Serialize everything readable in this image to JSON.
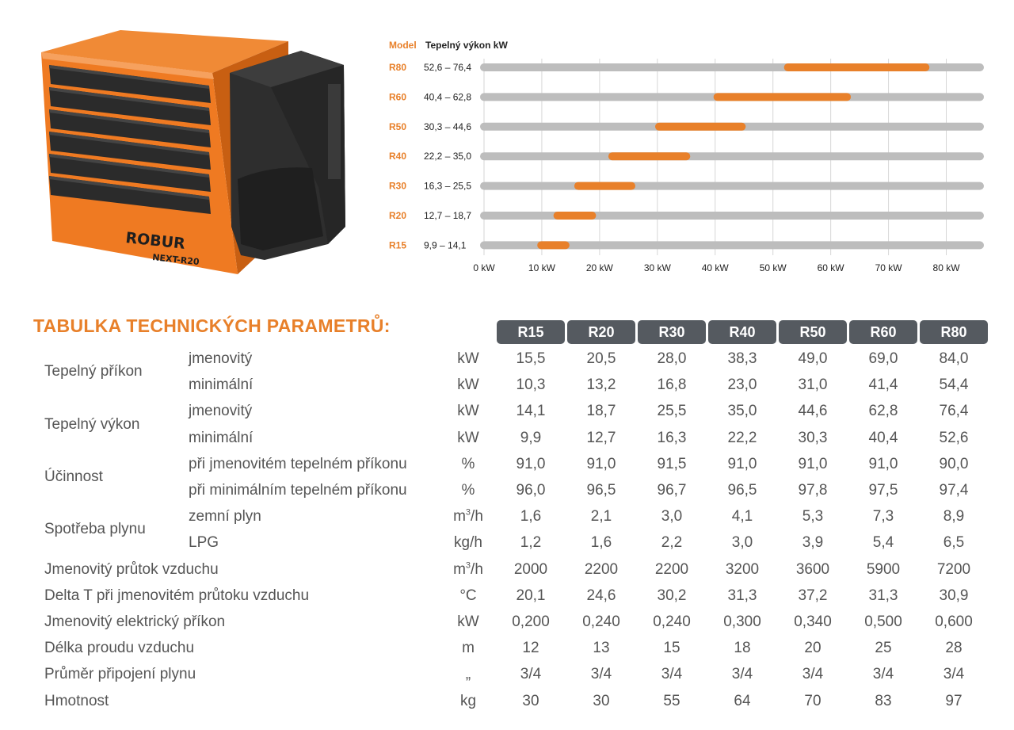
{
  "product": {
    "brand": "ROBUR",
    "model_label": "NEXT-R20",
    "colors": {
      "body": "#ef7a22",
      "dark": "#2a2a2a"
    }
  },
  "chart_data": {
    "type": "range-bar",
    "header_model": "Model",
    "header_title": "Tepelný výkon kW",
    "xlim": [
      0,
      85
    ],
    "x_ticks": [
      0,
      10,
      20,
      30,
      40,
      50,
      60,
      70,
      80
    ],
    "x_tick_labels": [
      "0 kW",
      "10 kW",
      "20 kW",
      "30 kW",
      "40 kW",
      "50 kW",
      "60 kW",
      "70 kW",
      "80 kW"
    ],
    "rows": [
      {
        "model": "R80",
        "range_label": "52,6 – 76,4",
        "min": 52.6,
        "max": 76.4
      },
      {
        "model": "R60",
        "range_label": "40,4 – 62,8",
        "min": 40.4,
        "max": 62.8
      },
      {
        "model": "R50",
        "range_label": "30,3 – 44,6",
        "min": 30.3,
        "max": 44.6
      },
      {
        "model": "R40",
        "range_label": "22,2 – 35,0",
        "min": 22.2,
        "max": 35.0
      },
      {
        "model": "R30",
        "range_label": "16,3 – 25,5",
        "min": 16.3,
        "max": 25.5
      },
      {
        "model": "R20",
        "range_label": "12,7 – 18,7",
        "min": 12.7,
        "max": 18.7
      },
      {
        "model": "R15",
        "range_label": "9,9 – 14,1",
        "min": 9.9,
        "max": 14.1
      }
    ],
    "colors": {
      "track": "#bdbdbd",
      "range": "#e8802a",
      "grid": "#d6d6d6"
    }
  },
  "table": {
    "title": "TABULKA TECHNICKÝCH PARAMETRŮ:",
    "models": [
      "R15",
      "R20",
      "R30",
      "R40",
      "R50",
      "R60",
      "R80"
    ],
    "groups": [
      {
        "label": "Tepelný příkon",
        "rows": [
          {
            "sub": "jmenovitý",
            "unit": "kW",
            "values": [
              "15,5",
              "20,5",
              "28,0",
              "38,3",
              "49,0",
              "69,0",
              "84,0"
            ]
          },
          {
            "sub": "minimální",
            "unit": "kW",
            "values": [
              "10,3",
              "13,2",
              "16,8",
              "23,0",
              "31,0",
              "41,4",
              "54,4"
            ]
          }
        ]
      },
      {
        "label": "Tepelný výkon",
        "rows": [
          {
            "sub": "jmenovitý",
            "unit": "kW",
            "values": [
              "14,1",
              "18,7",
              "25,5",
              "35,0",
              "44,6",
              "62,8",
              "76,4"
            ]
          },
          {
            "sub": "minimální",
            "unit": "kW",
            "values": [
              "9,9",
              "12,7",
              "16,3",
              "22,2",
              "30,3",
              "40,4",
              "52,6"
            ]
          }
        ]
      },
      {
        "label": "Účinnost",
        "rows": [
          {
            "sub": "při jmenovitém tepelném příkonu",
            "unit": "%",
            "values": [
              "91,0",
              "91,0",
              "91,5",
              "91,0",
              "91,0",
              "91,0",
              "90,0"
            ]
          },
          {
            "sub": "při minimálním tepelném příkonu",
            "unit": "%",
            "values": [
              "96,0",
              "96,5",
              "96,7",
              "96,5",
              "97,8",
              "97,5",
              "97,4"
            ]
          }
        ]
      },
      {
        "label": "Spotřeba plynu",
        "rows": [
          {
            "sub": "zemní plyn",
            "unit": "m³/h",
            "values": [
              "1,6",
              "2,1",
              "3,0",
              "4,1",
              "5,3",
              "7,3",
              "8,9"
            ]
          },
          {
            "sub": "LPG",
            "unit": "kg/h",
            "values": [
              "1,2",
              "1,6",
              "2,2",
              "3,0",
              "3,9",
              "5,4",
              "6,5"
            ]
          }
        ]
      }
    ],
    "rows": [
      {
        "label": "Jmenovitý průtok vzduchu",
        "unit": "m³/h",
        "values": [
          "2000",
          "2200",
          "2200",
          "3200",
          "3600",
          "5900",
          "7200"
        ]
      },
      {
        "label": "Delta T při jmenovitém průtoku vzduchu",
        "unit": "°C",
        "values": [
          "20,1",
          "24,6",
          "30,2",
          "31,3",
          "37,2",
          "31,3",
          "30,9"
        ]
      },
      {
        "label": "Jmenovitý elektrický příkon",
        "unit": "kW",
        "values": [
          "0,200",
          "0,240",
          "0,240",
          "0,300",
          "0,340",
          "0,500",
          "0,600"
        ]
      },
      {
        "label": "Délka proudu vzduchu",
        "unit": "m",
        "values": [
          "12",
          "13",
          "15",
          "18",
          "20",
          "25",
          "28"
        ]
      },
      {
        "label": "Průměr připojení plynu",
        "unit": "„",
        "values": [
          "3/4",
          "3/4",
          "3/4",
          "3/4",
          "3/4",
          "3/4",
          "3/4"
        ]
      },
      {
        "label": "Hmotnost",
        "unit": "kg",
        "values": [
          "30",
          "30",
          "55",
          "64",
          "70",
          "83",
          "97"
        ]
      }
    ]
  }
}
